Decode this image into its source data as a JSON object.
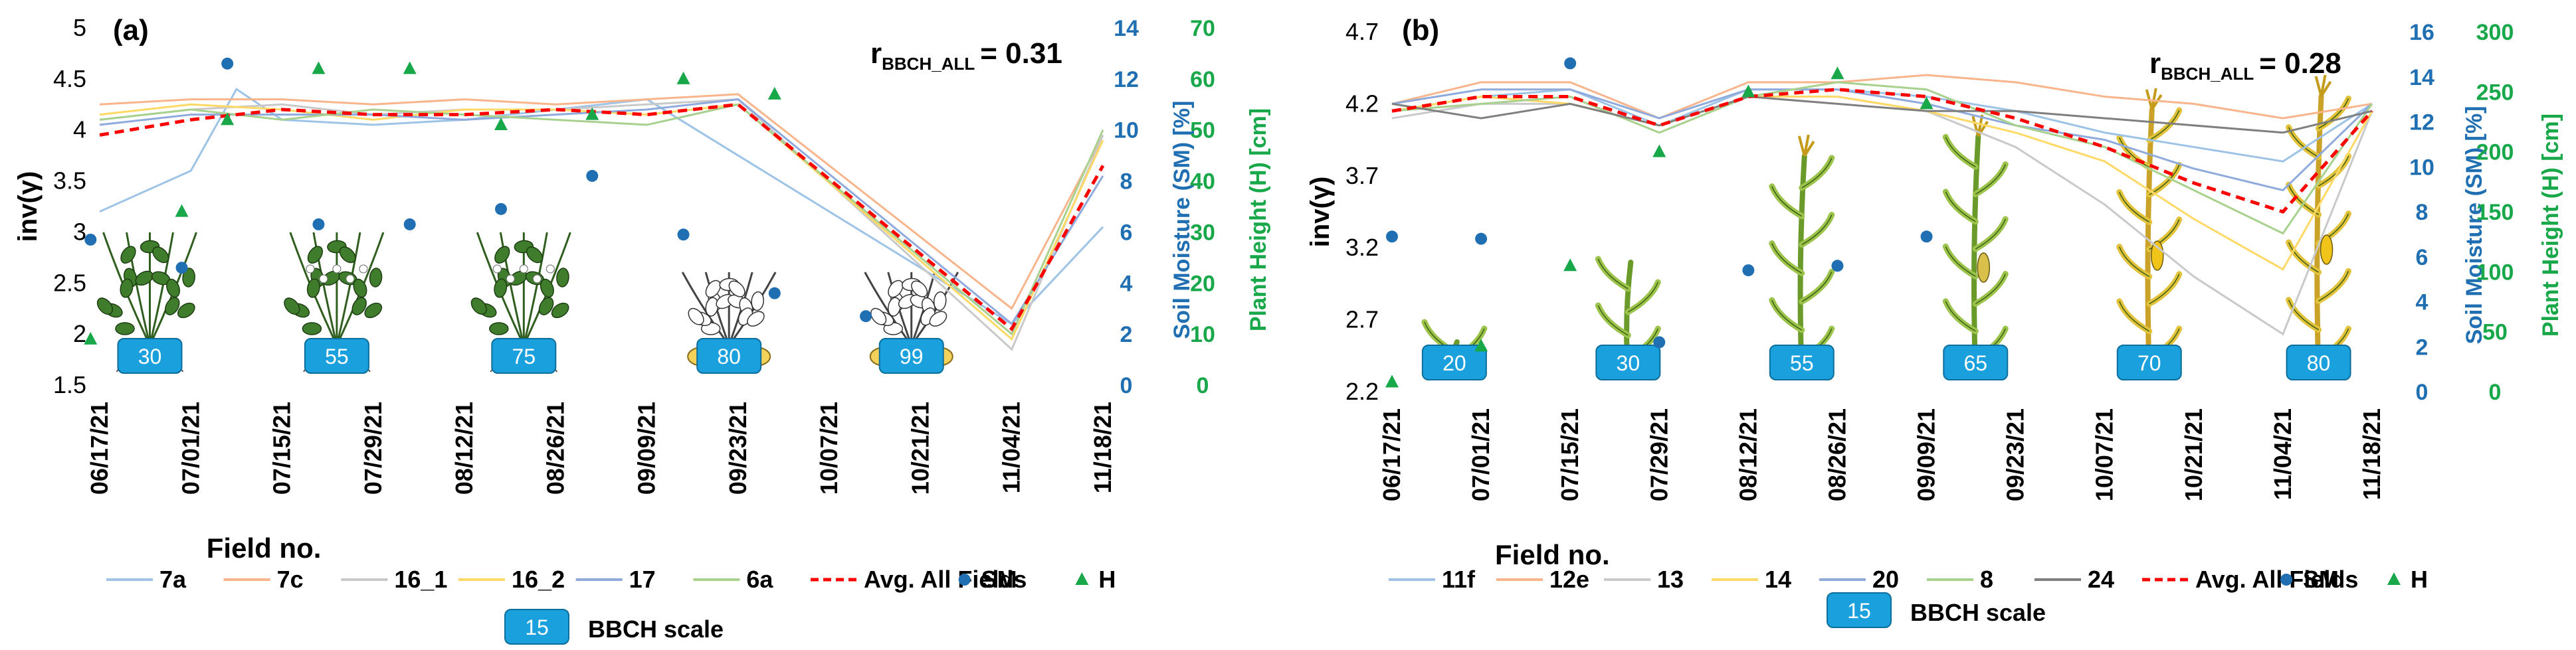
{
  "chart_data": [
    {
      "type": "line",
      "panel_label": "(a)",
      "correlation": {
        "prefix": "r",
        "subscript": "BBCH_ALL",
        "value_text": "= 0.31"
      },
      "x": [
        "06/17/21",
        "07/01/21",
        "07/15/21",
        "07/29/21",
        "08/12/21",
        "08/26/21",
        "09/09/21",
        "09/23/21",
        "10/07/21",
        "10/21/21",
        "11/04/21",
        "11/18/21"
      ],
      "xlabel": "Field no.",
      "ylabel": "inv(γ)",
      "ylim": [
        1.5,
        5
      ],
      "yticks": [
        "1.5",
        "2",
        "2.5",
        "3",
        "3.5",
        "4",
        "4.5",
        "5"
      ],
      "sm_axis": {
        "label": "Soil Moisture (SM) [%]",
        "range": [
          0,
          14
        ],
        "ticks": [
          "0",
          "2",
          "4",
          "6",
          "8",
          "10",
          "12",
          "14"
        ],
        "color": "#1f6fb2"
      },
      "h_axis": {
        "label": "Plant Height (H) [cm]",
        "range": [
          0,
          70
        ],
        "ticks": [
          "0",
          "10",
          "20",
          "30",
          "40",
          "50",
          "60",
          "70"
        ],
        "color": "#18a84a"
      },
      "series": [
        {
          "name": "7a",
          "color": "#9dc3e6",
          "dash": false,
          "x": [
            0,
            1,
            1.5,
            2,
            3,
            4,
            5,
            6,
            7,
            8,
            9,
            10,
            11
          ],
          "values": [
            3.2,
            3.6,
            4.4,
            4.1,
            4.05,
            4.1,
            4.2,
            4.3,
            null,
            null,
            null,
            2.1,
            3.05
          ]
        },
        {
          "name": "7c",
          "color": "#f8b48a",
          "dash": false,
          "x": [
            0,
            1,
            2,
            3,
            4,
            5,
            6,
            7,
            8,
            9,
            10,
            11
          ],
          "values": [
            4.25,
            4.3,
            4.3,
            4.25,
            4.3,
            4.25,
            4.3,
            4.35,
            null,
            null,
            2.25,
            3.95
          ]
        },
        {
          "name": "16_1",
          "color": "#c9c9c9",
          "dash": false,
          "x": [
            0,
            1,
            2,
            3,
            4,
            5,
            6,
            7,
            8,
            9,
            10,
            11
          ],
          "values": [
            4.1,
            4.2,
            4.25,
            4.15,
            4.2,
            4.2,
            4.25,
            4.3,
            null,
            null,
            1.85,
            3.95
          ]
        },
        {
          "name": "16_2",
          "color": "#ffd966",
          "dash": false,
          "x": [
            0,
            1,
            2,
            3,
            4,
            5,
            6,
            7,
            8,
            9,
            10,
            11
          ],
          "values": [
            4.15,
            4.25,
            4.2,
            4.1,
            4.2,
            4.2,
            4.15,
            4.25,
            null,
            null,
            1.95,
            3.9
          ]
        },
        {
          "name": "17",
          "color": "#8faadc",
          "dash": false,
          "x": [
            0,
            1,
            2,
            3,
            4,
            5,
            6,
            7,
            8,
            9,
            10,
            11
          ],
          "values": [
            4.05,
            4.15,
            4.15,
            4.15,
            4.1,
            4.15,
            4.2,
            4.3,
            null,
            null,
            2.1,
            3.55
          ]
        },
        {
          "name": "6a",
          "color": "#a9d18e",
          "dash": false,
          "x": [
            0,
            1,
            2,
            3,
            4,
            5,
            6,
            7,
            8,
            9,
            10,
            11
          ],
          "values": [
            4.1,
            4.2,
            4.1,
            4.2,
            4.15,
            4.1,
            4.05,
            4.25,
            null,
            null,
            2.0,
            4.0
          ]
        },
        {
          "name": "Avg. All Fields",
          "color": "#ff0000",
          "dash": true,
          "x": [
            0,
            1,
            2,
            3,
            4,
            5,
            6,
            7,
            8,
            9,
            10,
            11
          ],
          "values": [
            3.95,
            4.1,
            4.2,
            4.15,
            4.15,
            4.2,
            4.15,
            4.25,
            null,
            null,
            2.05,
            3.65
          ]
        }
      ],
      "scatter": [
        {
          "name": "SM",
          "marker": "circle",
          "color": "#1f6fb2",
          "axis": "sm",
          "x": [
            -0.1,
            0.9,
            1.4,
            2.4,
            3.4,
            4.4,
            5.4,
            6.4,
            7.4,
            8.4
          ],
          "values": [
            5.7,
            4.6,
            12.6,
            6.3,
            6.3,
            6.9,
            8.2,
            5.9,
            3.6,
            2.7
          ]
        },
        {
          "name": "H",
          "marker": "triangle",
          "color": "#18a84a",
          "axis": "h",
          "x": [
            -0.1,
            0.9,
            1.4,
            2.4,
            3.4,
            4.4,
            5.4,
            6.4,
            7.4,
            8.4
          ],
          "values": [
            9,
            34,
            52,
            62,
            62,
            51,
            53,
            60,
            57,
            null
          ]
        }
      ],
      "bbch": [
        {
          "pos": 0.55,
          "label": "30",
          "plant": "potato"
        },
        {
          "pos": 2.6,
          "label": "55",
          "plant": "potato"
        },
        {
          "pos": 4.65,
          "label": "75",
          "plant": "potato"
        },
        {
          "pos": 6.9,
          "label": "80",
          "plant": "potato-tuber"
        },
        {
          "pos": 8.9,
          "label": "99",
          "plant": "potato-tuber"
        }
      ],
      "legend": {
        "lines": [
          "7a",
          "7c",
          "16_1",
          "16_2",
          "17",
          "6a",
          "Avg. All Fields",
          "SM",
          "H"
        ],
        "bbch_box": "15",
        "bbch_text": "BBCH scale"
      }
    },
    {
      "type": "line",
      "panel_label": "(b)",
      "correlation": {
        "prefix": "r",
        "subscript": "BBCH_ALL",
        "value_text": "= 0.28"
      },
      "x": [
        "06/17/21",
        "07/01/21",
        "07/15/21",
        "07/29/21",
        "08/12/21",
        "08/26/21",
        "09/09/21",
        "09/23/21",
        "10/07/21",
        "10/21/21",
        "11/04/21",
        "11/18/21"
      ],
      "xlabel": "Field no.",
      "ylabel": "inv(γ)",
      "ylim": [
        2.2,
        4.7
      ],
      "yticks": [
        "2.2",
        "2.7",
        "3.2",
        "3.7",
        "4.2",
        "4.7"
      ],
      "sm_axis": {
        "label": "Soil Moisture (SM) [%]",
        "range": [
          0,
          16
        ],
        "ticks": [
          "0",
          "2",
          "4",
          "6",
          "8",
          "10",
          "12",
          "14",
          "16"
        ],
        "color": "#1f6fb2"
      },
      "h_axis": {
        "label": "Plant Height (H) [cm]",
        "range": [
          0,
          300
        ],
        "ticks": [
          "0",
          "50",
          "100",
          "150",
          "200",
          "250",
          "300"
        ],
        "color": "#18a84a"
      },
      "series": [
        {
          "name": "11f",
          "color": "#9dc3e6",
          "dash": false,
          "values": [
            4.15,
            4.25,
            4.3,
            4.05,
            4.3,
            4.3,
            4.25,
            4.15,
            4.0,
            3.9,
            3.8,
            4.2
          ]
        },
        {
          "name": "12e",
          "color": "#f8b48a",
          "dash": false,
          "values": [
            4.2,
            4.35,
            4.35,
            4.1,
            4.35,
            4.35,
            4.4,
            4.35,
            4.25,
            4.2,
            4.1,
            4.2
          ]
        },
        {
          "name": "13",
          "color": "#c9c9c9",
          "dash": false,
          "values": [
            4.1,
            4.2,
            4.2,
            4.05,
            4.25,
            4.25,
            4.15,
            3.9,
            3.5,
            3.0,
            2.6,
            4.15
          ]
        },
        {
          "name": "14",
          "color": "#ffd966",
          "dash": false,
          "values": [
            4.15,
            4.25,
            4.2,
            4.05,
            4.25,
            4.25,
            4.15,
            4.0,
            3.8,
            3.4,
            3.05,
            4.15
          ]
        },
        {
          "name": "20",
          "color": "#8faadc",
          "dash": false,
          "values": [
            4.2,
            4.3,
            4.3,
            4.1,
            4.3,
            4.3,
            4.2,
            4.05,
            3.95,
            3.75,
            3.6,
            4.2
          ]
        },
        {
          "name": "8",
          "color": "#a9d18e",
          "dash": false,
          "values": [
            4.15,
            4.2,
            4.25,
            4.0,
            4.25,
            4.35,
            4.3,
            4.05,
            3.9,
            3.6,
            3.3,
            4.2
          ]
        },
        {
          "name": "24",
          "color": "#7f7f7f",
          "dash": false,
          "values": [
            4.2,
            4.1,
            4.2,
            4.05,
            4.25,
            4.2,
            4.15,
            4.15,
            4.1,
            4.05,
            4.0,
            4.15
          ]
        },
        {
          "name": "Avg. All Fields",
          "color": "#ff0000",
          "dash": true,
          "values": [
            4.15,
            4.25,
            4.25,
            4.05,
            4.25,
            4.3,
            4.25,
            4.1,
            3.9,
            3.65,
            3.45,
            4.15
          ]
        }
      ],
      "scatter": [
        {
          "name": "SM",
          "marker": "circle",
          "color": "#1f6fb2",
          "axis": "sm",
          "x": [
            0,
            1,
            2,
            3,
            4,
            5,
            6
          ],
          "values": [
            6.9,
            6.8,
            14.6,
            2.2,
            5.4,
            5.6,
            6.9
          ]
        },
        {
          "name": "H",
          "marker": "triangle",
          "color": "#18a84a",
          "axis": "h",
          "x": [
            0,
            1,
            2,
            3,
            4,
            5,
            6
          ],
          "values": [
            8,
            38,
            105,
            200,
            250,
            265,
            240
          ]
        }
      ],
      "bbch": [
        {
          "pos": 0.7,
          "label": "20",
          "plant": "maize"
        },
        {
          "pos": 2.65,
          "label": "30",
          "plant": "maize"
        },
        {
          "pos": 4.6,
          "label": "55",
          "plant": "maize"
        },
        {
          "pos": 6.55,
          "label": "65",
          "plant": "maize"
        },
        {
          "pos": 8.5,
          "label": "70",
          "plant": "maize"
        },
        {
          "pos": 10.4,
          "label": "80",
          "plant": "maize-ripe"
        }
      ],
      "legend": {
        "lines": [
          "11f",
          "12e",
          "13",
          "14",
          "20",
          "8",
          "24",
          "Avg. All Fields",
          "SM",
          "H"
        ],
        "bbch_box": "15",
        "bbch_text": "BBCH scale"
      }
    }
  ]
}
